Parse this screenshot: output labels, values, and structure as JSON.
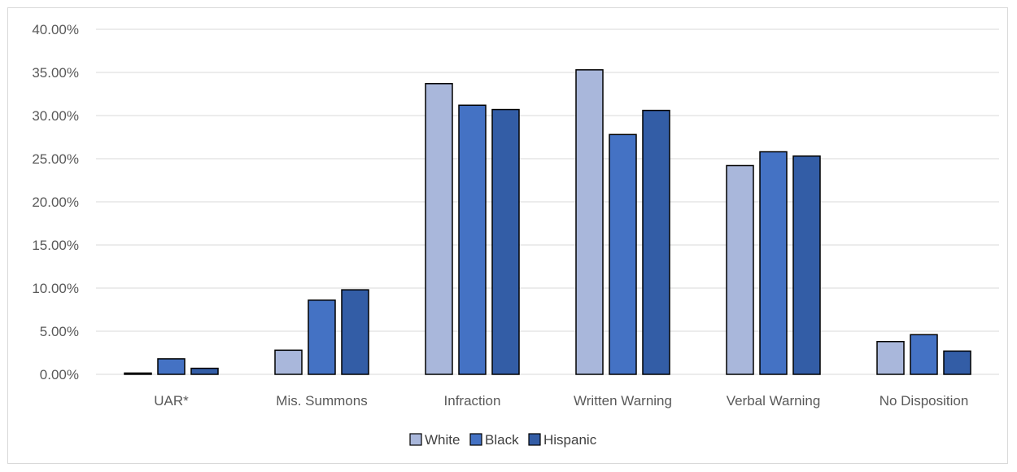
{
  "chart_data": {
    "type": "bar",
    "title": "",
    "xlabel": "",
    "ylabel": "",
    "categories": [
      "UAR*",
      "Mis. Summons",
      "Infraction",
      "Written Warning",
      "Verbal Warning",
      "No Disposition"
    ],
    "series": [
      {
        "name": "White",
        "color": "#a9b7db",
        "values": [
          0.0015,
          0.028,
          0.337,
          0.353,
          0.242,
          0.038
        ]
      },
      {
        "name": "Black",
        "color": "#4472c4",
        "values": [
          0.018,
          0.086,
          0.312,
          0.278,
          0.258,
          0.046
        ]
      },
      {
        "name": "Hispanic",
        "color": "#335da6",
        "values": [
          0.007,
          0.098,
          0.307,
          0.306,
          0.253,
          0.027
        ]
      }
    ],
    "ylim": [
      0,
      0.4
    ],
    "yticks": [
      0,
      0.05,
      0.1,
      0.15,
      0.2,
      0.25,
      0.3,
      0.35,
      0.4
    ],
    "ytick_labels": [
      "0.00%",
      "5.00%",
      "10.00%",
      "15.00%",
      "20.00%",
      "25.00%",
      "30.00%",
      "35.00%",
      "40.00%"
    ],
    "grid": true,
    "legend_position": "bottom"
  }
}
